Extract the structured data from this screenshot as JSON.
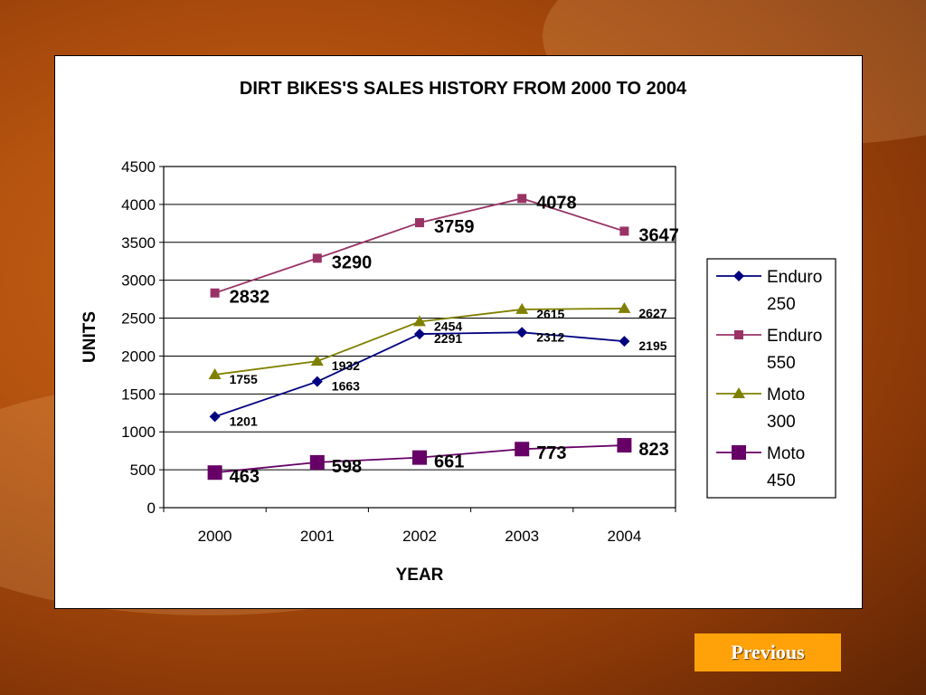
{
  "chart_data": {
    "type": "line",
    "title": "DIRT BIKES'S SALES HISTORY FROM 2000 TO 2004",
    "xlabel": "YEAR",
    "ylabel": "UNITS",
    "categories": [
      "2000",
      "2001",
      "2002",
      "2003",
      "2004"
    ],
    "ylim": [
      0,
      4500
    ],
    "yticks": [
      0,
      500,
      1000,
      1500,
      2000,
      2500,
      3000,
      3500,
      4000,
      4500
    ],
    "grid": "horizontal",
    "legend_position": "right",
    "series": [
      {
        "name": "Enduro 250",
        "legend_lines": [
          "Enduro",
          "250"
        ],
        "color": "#000080",
        "marker": "diamond",
        "label_style": "small",
        "values": [
          1201,
          1663,
          2291,
          2312,
          2195
        ]
      },
      {
        "name": "Enduro 550",
        "legend_lines": [
          "Enduro",
          "550"
        ],
        "color": "#993366",
        "marker": "square",
        "label_style": "large",
        "values": [
          2832,
          3290,
          3759,
          4078,
          3647
        ]
      },
      {
        "name": "Moto 300",
        "legend_lines": [
          "Moto",
          "300"
        ],
        "color": "#808000",
        "marker": "triangle",
        "label_style": "small",
        "values": [
          1755,
          1932,
          2454,
          2615,
          2627
        ]
      },
      {
        "name": "Moto 450",
        "legend_lines": [
          "Moto",
          "450"
        ],
        "color": "#660066",
        "marker": "bigsquare",
        "label_style": "large",
        "values": [
          463,
          598,
          661,
          773,
          823
        ]
      }
    ]
  },
  "nav": {
    "previous_label": "Previous"
  }
}
